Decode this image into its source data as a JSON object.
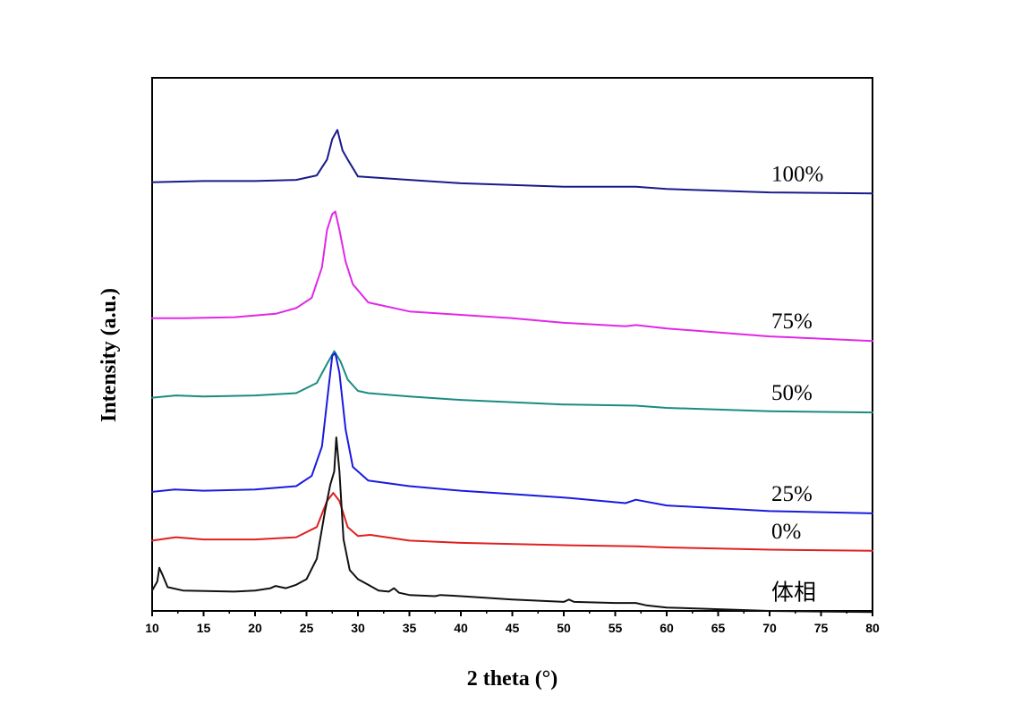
{
  "chart_data": {
    "type": "line",
    "title": "",
    "xlabel": "2 theta (°)",
    "ylabel": "Intensity (a.u.)",
    "xlim": [
      10,
      80
    ],
    "xticks": [
      10,
      15,
      20,
      25,
      30,
      35,
      40,
      45,
      50,
      55,
      60,
      65,
      70,
      75,
      80
    ],
    "yticks_shown": false,
    "y_units": "arbitrary (stacked offsets)",
    "grid": false,
    "legend": "inline labels at right end of each trace",
    "series": [
      {
        "name": "100%",
        "color": "#1a1a8c",
        "baseline_offset": 3.78,
        "points": [
          [
            10,
            0
          ],
          [
            15,
            0.01
          ],
          [
            20,
            0.01
          ],
          [
            24,
            0.02
          ],
          [
            26,
            0.06
          ],
          [
            27,
            0.2
          ],
          [
            27.5,
            0.38
          ],
          [
            28,
            0.46
          ],
          [
            28.5,
            0.28
          ],
          [
            29,
            0.2
          ],
          [
            30,
            0.05
          ],
          [
            35,
            0.02
          ],
          [
            40,
            -0.01
          ],
          [
            50,
            -0.04
          ],
          [
            57,
            -0.04
          ],
          [
            60,
            -0.06
          ],
          [
            70,
            -0.09
          ],
          [
            80,
            -0.1
          ]
        ]
      },
      {
        "name": "75%",
        "color": "#e028e8",
        "baseline_offset": 2.58,
        "points": [
          [
            10,
            0
          ],
          [
            13,
            0
          ],
          [
            18,
            0.01
          ],
          [
            22,
            0.04
          ],
          [
            24,
            0.09
          ],
          [
            25.5,
            0.18
          ],
          [
            26.5,
            0.45
          ],
          [
            27,
            0.78
          ],
          [
            27.5,
            0.92
          ],
          [
            27.8,
            0.94
          ],
          [
            28.2,
            0.78
          ],
          [
            28.8,
            0.5
          ],
          [
            29.5,
            0.3
          ],
          [
            31,
            0.14
          ],
          [
            35,
            0.06
          ],
          [
            40,
            0.03
          ],
          [
            45,
            0
          ],
          [
            50,
            -0.04
          ],
          [
            56,
            -0.07
          ],
          [
            57,
            -0.06
          ],
          [
            60,
            -0.09
          ],
          [
            70,
            -0.16
          ],
          [
            80,
            -0.2
          ]
        ]
      },
      {
        "name": "50%",
        "color": "#1a8c80",
        "baseline_offset": 1.88,
        "points": [
          [
            10,
            0
          ],
          [
            12.3,
            0.02
          ],
          [
            15,
            0.01
          ],
          [
            20,
            0.02
          ],
          [
            24,
            0.04
          ],
          [
            26,
            0.13
          ],
          [
            27,
            0.3
          ],
          [
            27.7,
            0.41
          ],
          [
            28.3,
            0.32
          ],
          [
            29,
            0.16
          ],
          [
            30,
            0.06
          ],
          [
            31,
            0.04
          ],
          [
            35,
            0.01
          ],
          [
            40,
            -0.02
          ],
          [
            50,
            -0.06
          ],
          [
            57,
            -0.07
          ],
          [
            60,
            -0.09
          ],
          [
            70,
            -0.12
          ],
          [
            80,
            -0.13
          ]
        ]
      },
      {
        "name": "25%",
        "color": "#1a1ae0",
        "baseline_offset": 1.05,
        "points": [
          [
            10,
            0
          ],
          [
            12.2,
            0.02
          ],
          [
            15,
            0.01
          ],
          [
            20,
            0.02
          ],
          [
            24,
            0.05
          ],
          [
            25.5,
            0.14
          ],
          [
            26.5,
            0.4
          ],
          [
            27,
            0.8
          ],
          [
            27.5,
            1.2
          ],
          [
            27.8,
            1.22
          ],
          [
            28.2,
            1.05
          ],
          [
            28.8,
            0.55
          ],
          [
            29.5,
            0.22
          ],
          [
            31,
            0.1
          ],
          [
            35,
            0.05
          ],
          [
            40,
            0.01
          ],
          [
            45,
            -0.02
          ],
          [
            50,
            -0.05
          ],
          [
            56,
            -0.1
          ],
          [
            57,
            -0.07
          ],
          [
            60,
            -0.12
          ],
          [
            70,
            -0.17
          ],
          [
            80,
            -0.19
          ]
        ]
      },
      {
        "name": "0%",
        "color": "#e02020",
        "baseline_offset": 0.62,
        "points": [
          [
            10,
            0
          ],
          [
            12.3,
            0.03
          ],
          [
            15,
            0.01
          ],
          [
            20,
            0.01
          ],
          [
            24,
            0.03
          ],
          [
            26,
            0.12
          ],
          [
            27,
            0.35
          ],
          [
            27.6,
            0.42
          ],
          [
            28.2,
            0.35
          ],
          [
            29,
            0.12
          ],
          [
            30,
            0.04
          ],
          [
            31.2,
            0.05
          ],
          [
            35,
            0
          ],
          [
            40,
            -0.02
          ],
          [
            50,
            -0.04
          ],
          [
            57,
            -0.05
          ],
          [
            60,
            -0.06
          ],
          [
            70,
            -0.08
          ],
          [
            80,
            -0.09
          ]
        ]
      },
      {
        "name": "体相",
        "color": "#111111",
        "baseline_offset": 0.18,
        "points": [
          [
            10,
            0
          ],
          [
            10.5,
            0.08
          ],
          [
            10.7,
            0.2
          ],
          [
            11,
            0.14
          ],
          [
            11.5,
            0.03
          ],
          [
            13,
            0
          ],
          [
            18,
            -0.01
          ],
          [
            20,
            0
          ],
          [
            21.5,
            0.02
          ],
          [
            22,
            0.04
          ],
          [
            23,
            0.02
          ],
          [
            24,
            0.05
          ],
          [
            25,
            0.1
          ],
          [
            26,
            0.28
          ],
          [
            26.8,
            0.7
          ],
          [
            27.3,
            0.93
          ],
          [
            27.7,
            1.05
          ],
          [
            27.9,
            1.35
          ],
          [
            28.2,
            1.05
          ],
          [
            28.6,
            0.45
          ],
          [
            29.2,
            0.18
          ],
          [
            30,
            0.1
          ],
          [
            31,
            0.05
          ],
          [
            32,
            0
          ],
          [
            33,
            -0.01
          ],
          [
            33.5,
            0.02
          ],
          [
            34,
            -0.02
          ],
          [
            35,
            -0.04
          ],
          [
            37.5,
            -0.05
          ],
          [
            38,
            -0.04
          ],
          [
            40,
            -0.05
          ],
          [
            45,
            -0.08
          ],
          [
            50,
            -0.1
          ],
          [
            50.5,
            -0.08
          ],
          [
            51,
            -0.1
          ],
          [
            55,
            -0.11
          ],
          [
            57,
            -0.11
          ],
          [
            58,
            -0.13
          ],
          [
            60,
            -0.15
          ],
          [
            70,
            -0.18
          ],
          [
            80,
            -0.19
          ]
        ]
      }
    ]
  }
}
